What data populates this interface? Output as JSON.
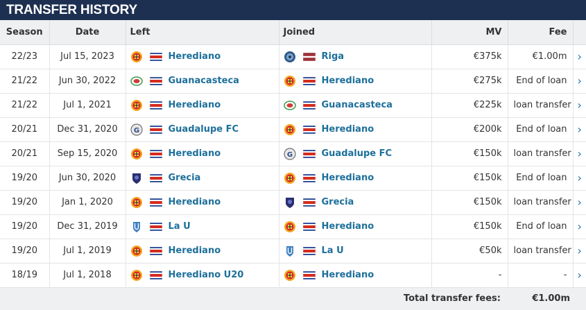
{
  "title": "TRANSFER HISTORY",
  "columns": {
    "season": "Season",
    "date": "Date",
    "left": "Left",
    "joined": "Joined",
    "mv": "MV",
    "fee": "Fee"
  },
  "rows": [
    {
      "season": "22/23",
      "date": "Jul 15, 2023",
      "left": {
        "club": "Herediano",
        "crest": "herediano",
        "flag": "costa-rica"
      },
      "joined": {
        "club": "Riga",
        "crest": "riga",
        "flag": "latvia"
      },
      "mv": "€375k",
      "fee": "€1.00m"
    },
    {
      "season": "21/22",
      "date": "Jun 30, 2022",
      "left": {
        "club": "Guanacasteca",
        "crest": "guanacasteca",
        "flag": "costa-rica"
      },
      "joined": {
        "club": "Herediano",
        "crest": "herediano",
        "flag": "costa-rica"
      },
      "mv": "€275k",
      "fee": "End of loan"
    },
    {
      "season": "21/22",
      "date": "Jul 1, 2021",
      "left": {
        "club": "Herediano",
        "crest": "herediano",
        "flag": "costa-rica"
      },
      "joined": {
        "club": "Guanacasteca",
        "crest": "guanacasteca",
        "flag": "costa-rica"
      },
      "mv": "€225k",
      "fee": "loan transfer"
    },
    {
      "season": "20/21",
      "date": "Dec 31, 2020",
      "left": {
        "club": "Guadalupe FC",
        "crest": "guadalupe",
        "flag": "costa-rica"
      },
      "joined": {
        "club": "Herediano",
        "crest": "herediano",
        "flag": "costa-rica"
      },
      "mv": "€200k",
      "fee": "End of loan"
    },
    {
      "season": "20/21",
      "date": "Sep 15, 2020",
      "left": {
        "club": "Herediano",
        "crest": "herediano",
        "flag": "costa-rica"
      },
      "joined": {
        "club": "Guadalupe FC",
        "crest": "guadalupe",
        "flag": "costa-rica"
      },
      "mv": "€150k",
      "fee": "loan transfer"
    },
    {
      "season": "19/20",
      "date": "Jun 30, 2020",
      "left": {
        "club": "Grecia",
        "crest": "grecia",
        "flag": "costa-rica"
      },
      "joined": {
        "club": "Herediano",
        "crest": "herediano",
        "flag": "costa-rica"
      },
      "mv": "€150k",
      "fee": "End of loan"
    },
    {
      "season": "19/20",
      "date": "Jan 1, 2020",
      "left": {
        "club": "Herediano",
        "crest": "herediano",
        "flag": "costa-rica"
      },
      "joined": {
        "club": "Grecia",
        "crest": "grecia",
        "flag": "costa-rica"
      },
      "mv": "€150k",
      "fee": "loan transfer"
    },
    {
      "season": "19/20",
      "date": "Dec 31, 2019",
      "left": {
        "club": "La U",
        "crest": "la-u",
        "flag": "costa-rica"
      },
      "joined": {
        "club": "Herediano",
        "crest": "herediano",
        "flag": "costa-rica"
      },
      "mv": "€150k",
      "fee": "End of loan"
    },
    {
      "season": "19/20",
      "date": "Jul 1, 2019",
      "left": {
        "club": "Herediano",
        "crest": "herediano",
        "flag": "costa-rica"
      },
      "joined": {
        "club": "La U",
        "crest": "la-u",
        "flag": "costa-rica"
      },
      "mv": "€50k",
      "fee": "loan transfer"
    },
    {
      "season": "18/19",
      "date": "Jul 1, 2018",
      "left": {
        "club": "Herediano U20",
        "crest": "herediano",
        "flag": "costa-rica"
      },
      "joined": {
        "club": "Herediano",
        "crest": "herediano",
        "flag": "costa-rica"
      },
      "mv": "-",
      "fee": "-"
    }
  ],
  "footer": {
    "total_label": "Total transfer fees:",
    "total_value": "€1.00m"
  },
  "colors": {
    "header_bg": "#1d3051",
    "link": "#1d6f9a",
    "arrow": "#1d75b3"
  }
}
